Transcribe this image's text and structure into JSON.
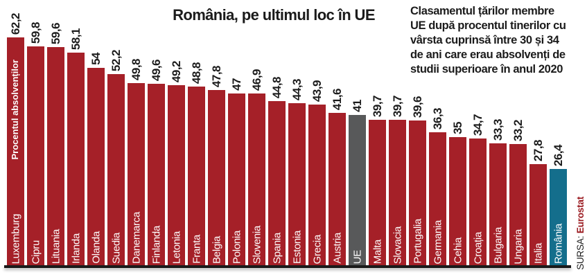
{
  "chart_data": {
    "type": "bar",
    "title": "România, pe ultimul loc în UE",
    "description": "Clasamentul țărilor membre\nUE după procentul tinerilor cu\nvârsta cuprinsă între 30 și 34\nde ani care erau absolvenți de\nstudii superioare în anul 2020",
    "ylabel": "Procentul absolvenților",
    "source": {
      "label": "SURSA: ",
      "value": "Eurostat"
    },
    "ylim": [
      0,
      62.2
    ],
    "grid": false,
    "legend": false,
    "colors": {
      "default": "#A52028",
      "ue": "#58595A",
      "romania": "#146E8C"
    },
    "categories": [
      "Luxemburg",
      "Cipru",
      "Lituania",
      "Irlanda",
      "Olanda",
      "Suedia",
      "Danemarca",
      "Finlanda",
      "Letonia",
      "Franta",
      "Belgia",
      "Polonia",
      "Slovenia",
      "Spania",
      "Estonia",
      "Grecia",
      "Austria",
      "UE",
      "Malta",
      "Slovacia",
      "Portugalia",
      "Germania",
      "Cehia",
      "Croația",
      "Bulgaria",
      "Ungaria",
      "Italia",
      "România"
    ],
    "values": [
      62.2,
      59.8,
      59.6,
      58.1,
      54,
      52.2,
      49.8,
      49.6,
      49.2,
      48.8,
      47.8,
      47,
      46.9,
      44.8,
      44.3,
      43.9,
      41.6,
      41,
      39.7,
      39.7,
      39.6,
      36.3,
      35,
      34.7,
      33.3,
      33.2,
      27.8,
      26.4
    ],
    "bars": [
      {
        "country": "Luxemburg",
        "value": 62.2,
        "label": "62,2",
        "color": "default"
      },
      {
        "country": "Cipru",
        "value": 59.8,
        "label": "59,8",
        "color": "default"
      },
      {
        "country": "Lituania",
        "value": 59.6,
        "label": "59,6",
        "color": "default"
      },
      {
        "country": "Irlanda",
        "value": 58.1,
        "label": "58,1",
        "color": "default"
      },
      {
        "country": "Olanda",
        "value": 54,
        "label": "54",
        "color": "default"
      },
      {
        "country": "Suedia",
        "value": 52.2,
        "label": "52,2",
        "color": "default"
      },
      {
        "country": "Danemarca",
        "value": 49.8,
        "label": "49,8",
        "color": "default"
      },
      {
        "country": "Finlanda",
        "value": 49.6,
        "label": "49,6",
        "color": "default"
      },
      {
        "country": "Letonia",
        "value": 49.2,
        "label": "49,2",
        "color": "default"
      },
      {
        "country": "Franta",
        "value": 48.8,
        "label": "48,8",
        "color": "default"
      },
      {
        "country": "Belgia",
        "value": 47.8,
        "label": "47,8",
        "color": "default"
      },
      {
        "country": "Polonia",
        "value": 47,
        "label": "47",
        "color": "default"
      },
      {
        "country": "Slovenia",
        "value": 46.9,
        "label": "46,9",
        "color": "default"
      },
      {
        "country": "Spania",
        "value": 44.8,
        "label": "44,8",
        "color": "default"
      },
      {
        "country": "Estonia",
        "value": 44.3,
        "label": "44,3",
        "color": "default"
      },
      {
        "country": "Grecia",
        "value": 43.9,
        "label": "43,9",
        "color": "default"
      },
      {
        "country": "Austria",
        "value": 41.6,
        "label": "41,6",
        "color": "default"
      },
      {
        "country": "UE",
        "value": 41,
        "label": "41",
        "color": "ue"
      },
      {
        "country": "Malta",
        "value": 39.7,
        "label": "39,7",
        "color": "default"
      },
      {
        "country": "Slovacia",
        "value": 39.7,
        "label": "39,7",
        "color": "default"
      },
      {
        "country": "Portugalia",
        "value": 39.6,
        "label": "39,6",
        "color": "default"
      },
      {
        "country": "Germania",
        "value": 36.3,
        "label": "36,3",
        "color": "default"
      },
      {
        "country": "Cehia",
        "value": 35,
        "label": "35",
        "color": "default"
      },
      {
        "country": "Croația",
        "value": 34.7,
        "label": "34,7",
        "color": "default"
      },
      {
        "country": "Bulgaria",
        "value": 33.3,
        "label": "33,3",
        "color": "default"
      },
      {
        "country": "Ungaria",
        "value": 33.2,
        "label": "33,2",
        "color": "default"
      },
      {
        "country": "Italia",
        "value": 27.8,
        "label": "27,8",
        "color": "default"
      },
      {
        "country": "România",
        "value": 26.4,
        "label": "26,4",
        "color": "romania"
      }
    ]
  }
}
